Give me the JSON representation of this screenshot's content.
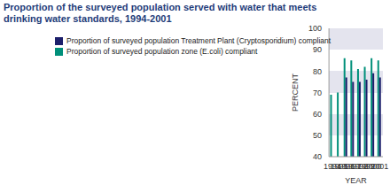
{
  "chart_data": {
    "type": "bar",
    "title": "Proportion of the surveyed population served with water that meets drinking water standards, 1994-2001",
    "categories": [
      "1994",
      "1995",
      "1996",
      "1997",
      "1998",
      "1999",
      "2000",
      "2001"
    ],
    "series": [
      {
        "name": "Proportion of surveyed population zone (E.coli) compliant",
        "color": "#00907a",
        "values": [
          69,
          70,
          86,
          85,
          81,
          82,
          86,
          85
        ]
      },
      {
        "name": "Proportion of surveyed population Treatment Plant (Cryptosporidium) compliant",
        "color": "#1c1f6b",
        "values": [
          null,
          null,
          77,
          75,
          75,
          76,
          79,
          77
        ]
      }
    ],
    "x_label": "YEAR",
    "y_label": "PERCENT",
    "ylim": [
      40,
      100
    ],
    "yticks": [
      40,
      50,
      60,
      70,
      80,
      90,
      100
    ],
    "grid": true,
    "legend": "top-left"
  }
}
